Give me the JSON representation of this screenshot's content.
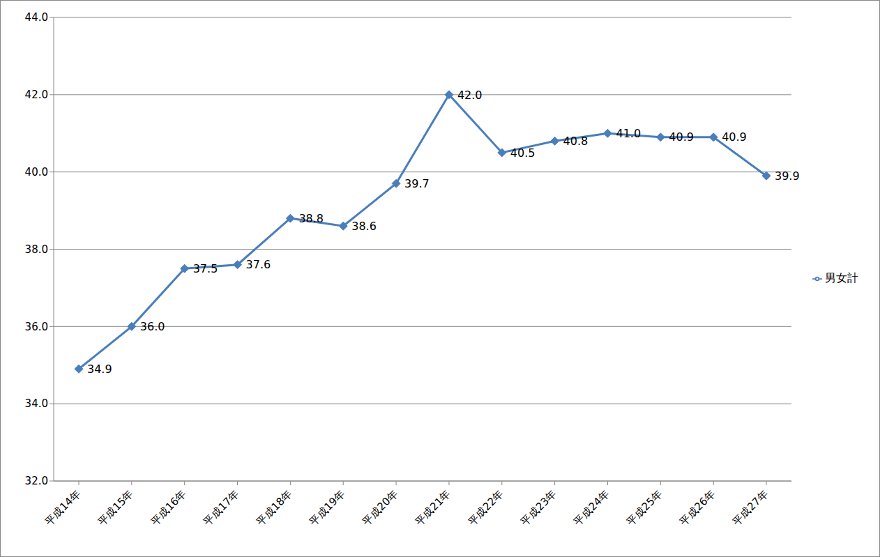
{
  "chart_data": {
    "type": "line",
    "categories": [
      "平成14年",
      "平成15年",
      "平成16年",
      "平成17年",
      "平成18年",
      "平成19年",
      "平成20年",
      "平成21年",
      "平成22年",
      "平成23年",
      "平成24年",
      "平成25年",
      "平成26年",
      "平成27年"
    ],
    "series": [
      {
        "name": "男女計",
        "color": "#4a7ebb",
        "marker": "diamond",
        "values": [
          34.9,
          36.0,
          37.5,
          37.6,
          38.8,
          38.6,
          39.7,
          42.0,
          40.5,
          40.8,
          41.0,
          40.9,
          40.9,
          39.9
        ],
        "value_labels": [
          "34.9",
          "36.0",
          "37.5",
          "37.6",
          "38.8",
          "38.6",
          "39.7",
          "42.0",
          "40.5",
          "40.8",
          "41.0",
          "40.9",
          "40.9",
          "39.9"
        ]
      }
    ],
    "ylim": [
      32,
      44
    ],
    "yticks": [
      {
        "value": 32,
        "label": "32.0"
      },
      {
        "value": 34,
        "label": "34.0"
      },
      {
        "value": 36,
        "label": "36.0"
      },
      {
        "value": 38,
        "label": "38.0"
      },
      {
        "value": 40,
        "label": "40.0"
      },
      {
        "value": 42,
        "label": "42.0"
      },
      {
        "value": 44,
        "label": "44.0"
      }
    ],
    "grid": true,
    "legend": "right",
    "data_labels": true
  }
}
